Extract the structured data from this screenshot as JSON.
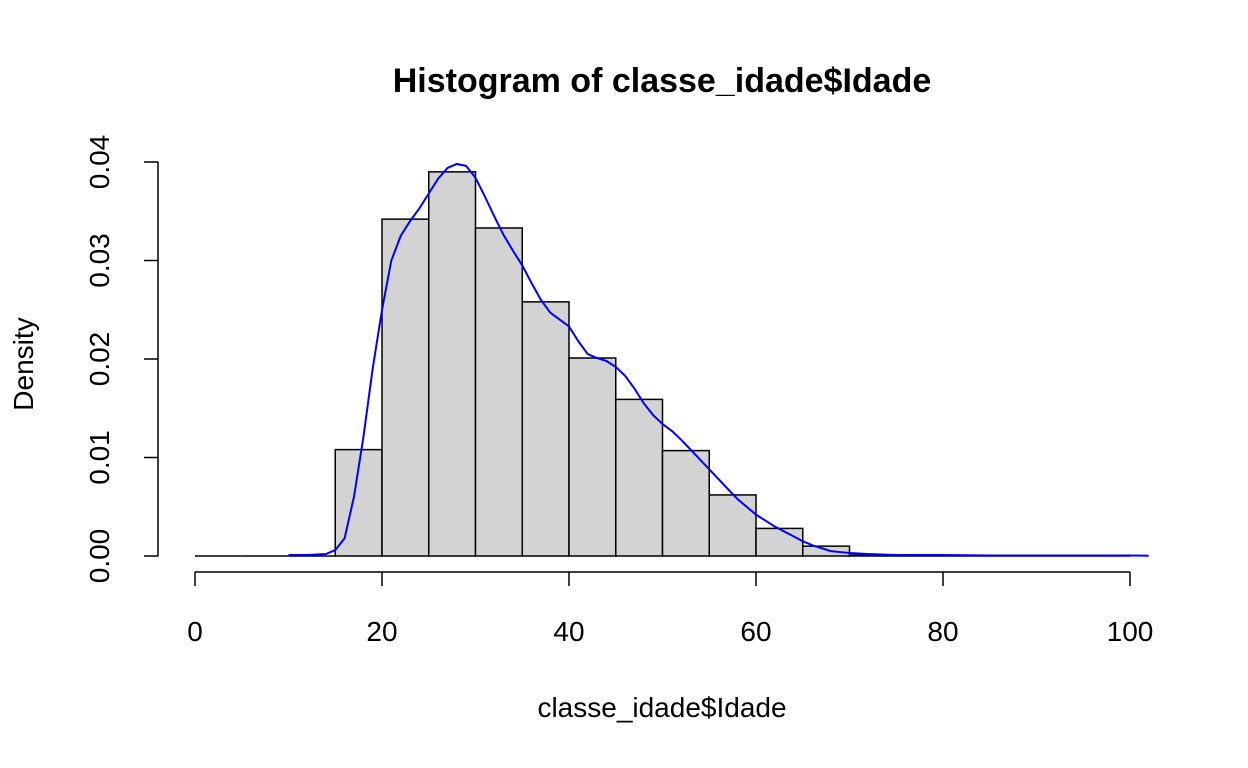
{
  "chart_data": {
    "type": "bar",
    "title": "Histogram of classe_idade$Idade",
    "xlabel": "classe_idade$Idade",
    "ylabel": "Density",
    "xlim": [
      0,
      100
    ],
    "ylim": [
      0,
      0.04
    ],
    "x_ticks": [
      0,
      20,
      40,
      60,
      80,
      100
    ],
    "x_tick_labels": [
      "0",
      "20",
      "40",
      "60",
      "80",
      "100"
    ],
    "y_ticks": [
      0,
      0.01,
      0.02,
      0.03,
      0.04
    ],
    "y_tick_labels": [
      "0.00",
      "0.01",
      "0.02",
      "0.03",
      "0.04"
    ],
    "grid": false,
    "bins": [
      {
        "start": 0,
        "end": 5,
        "value": 0
      },
      {
        "start": 5,
        "end": 10,
        "value": 0
      },
      {
        "start": 10,
        "end": 15,
        "value": 0
      },
      {
        "start": 15,
        "end": 20,
        "value": 0.0108
      },
      {
        "start": 20,
        "end": 25,
        "value": 0.0342
      },
      {
        "start": 25,
        "end": 30,
        "value": 0.039
      },
      {
        "start": 30,
        "end": 35,
        "value": 0.0333
      },
      {
        "start": 35,
        "end": 40,
        "value": 0.0258
      },
      {
        "start": 40,
        "end": 45,
        "value": 0.0201
      },
      {
        "start": 45,
        "end": 50,
        "value": 0.0159
      },
      {
        "start": 50,
        "end": 55,
        "value": 0.0107
      },
      {
        "start": 55,
        "end": 60,
        "value": 0.0062
      },
      {
        "start": 60,
        "end": 65,
        "value": 0.0028
      },
      {
        "start": 65,
        "end": 70,
        "value": 0.001
      },
      {
        "start": 70,
        "end": 75,
        "value": 0.0001
      },
      {
        "start": 75,
        "end": 80,
        "value": 0
      },
      {
        "start": 80,
        "end": 85,
        "value": 0
      },
      {
        "start": 85,
        "end": 90,
        "value": 0
      },
      {
        "start": 90,
        "end": 95,
        "value": 0
      },
      {
        "start": 95,
        "end": 100,
        "value": 0
      }
    ],
    "bar_fill": "#d3d3d3",
    "bar_stroke": "#000000",
    "density_curve": {
      "color": "#0000ff",
      "points": [
        [
          10,
          0.0001
        ],
        [
          12,
          0.0001
        ],
        [
          14,
          0.0002
        ],
        [
          15,
          0.0006
        ],
        [
          16,
          0.0018
        ],
        [
          17,
          0.006
        ],
        [
          18,
          0.012
        ],
        [
          19,
          0.019
        ],
        [
          20,
          0.025
        ],
        [
          21,
          0.03
        ],
        [
          22,
          0.0325
        ],
        [
          23,
          0.034
        ],
        [
          24,
          0.0353
        ],
        [
          25,
          0.0368
        ],
        [
          26,
          0.0383
        ],
        [
          27,
          0.0394
        ],
        [
          28,
          0.0398
        ],
        [
          29,
          0.0396
        ],
        [
          30,
          0.0384
        ],
        [
          31,
          0.0365
        ],
        [
          32,
          0.0345
        ],
        [
          33,
          0.0326
        ],
        [
          34,
          0.031
        ],
        [
          35,
          0.0295
        ],
        [
          36,
          0.0277
        ],
        [
          37,
          0.026
        ],
        [
          38,
          0.0247
        ],
        [
          39,
          0.024
        ],
        [
          40,
          0.0233
        ],
        [
          41,
          0.0218
        ],
        [
          42,
          0.0205
        ],
        [
          43,
          0.0201
        ],
        [
          44,
          0.0198
        ],
        [
          45,
          0.0192
        ],
        [
          46,
          0.0183
        ],
        [
          47,
          0.017
        ],
        [
          48,
          0.0155
        ],
        [
          49,
          0.0143
        ],
        [
          50,
          0.0134
        ],
        [
          51,
          0.0127
        ],
        [
          52,
          0.0118
        ],
        [
          53,
          0.0108
        ],
        [
          54,
          0.0098
        ],
        [
          55,
          0.0088
        ],
        [
          56,
          0.0078
        ],
        [
          57,
          0.0068
        ],
        [
          58,
          0.0058
        ],
        [
          59,
          0.005
        ],
        [
          60,
          0.0042
        ],
        [
          61,
          0.0036
        ],
        [
          62,
          0.003
        ],
        [
          63,
          0.0025
        ],
        [
          64,
          0.002
        ],
        [
          65,
          0.0015
        ],
        [
          66,
          0.0011
        ],
        [
          67,
          0.0008
        ],
        [
          68,
          0.0005
        ],
        [
          69,
          0.0004
        ],
        [
          70,
          0.0003
        ],
        [
          72,
          0.0002
        ],
        [
          75,
          0.0001
        ],
        [
          80,
          0.0001
        ],
        [
          85,
          5e-05
        ],
        [
          90,
          5e-05
        ],
        [
          95,
          5e-05
        ],
        [
          100,
          5e-05
        ],
        [
          102,
          3e-05
        ]
      ]
    }
  }
}
